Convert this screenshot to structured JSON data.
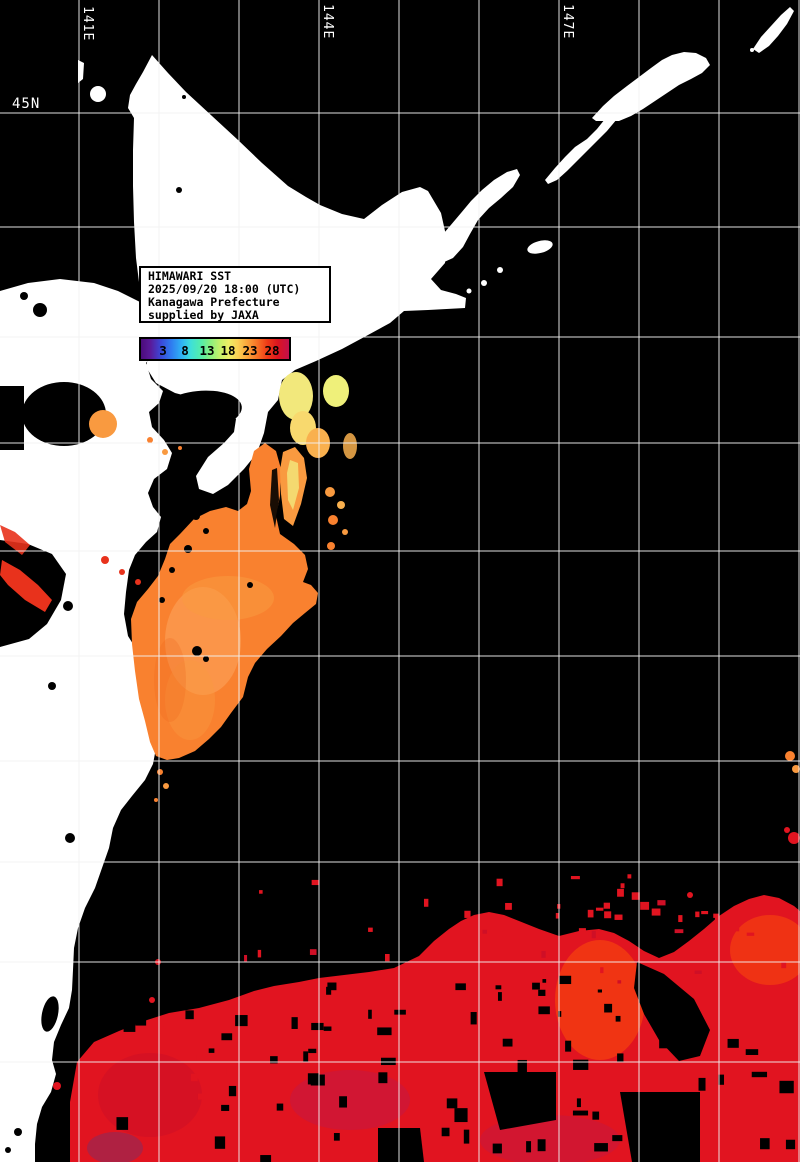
{
  "legend": {
    "lines": [
      "HIMAWARI SST",
      "2025/09/20 18:00 (UTC)",
      "Kanagawa Prefecture",
      "supplied by JAXA"
    ]
  },
  "colorbar": {
    "ticks": [
      "3",
      "8",
      "13",
      "18",
      "23",
      "28"
    ],
    "gradient": [
      {
        "o": 0.0,
        "c": "#4a0a78"
      },
      {
        "o": 0.07,
        "c": "#5a1a9a"
      },
      {
        "o": 0.14,
        "c": "#3a48d8"
      },
      {
        "o": 0.21,
        "c": "#2f7df0"
      },
      {
        "o": 0.28,
        "c": "#2fb4f4"
      },
      {
        "o": 0.34,
        "c": "#3fe0d8"
      },
      {
        "o": 0.41,
        "c": "#55eea8"
      },
      {
        "o": 0.47,
        "c": "#8af07e"
      },
      {
        "o": 0.53,
        "c": "#c2f06a"
      },
      {
        "o": 0.59,
        "c": "#ecee66"
      },
      {
        "o": 0.65,
        "c": "#fbd255"
      },
      {
        "o": 0.71,
        "c": "#fba83c"
      },
      {
        "o": 0.78,
        "c": "#f87426"
      },
      {
        "o": 0.85,
        "c": "#ee3a16"
      },
      {
        "o": 0.92,
        "c": "#dc1420"
      },
      {
        "o": 1.0,
        "c": "#c01050"
      }
    ]
  },
  "geo_labels": {
    "longitude": [
      "141E",
      "144E",
      "147E"
    ],
    "latitude": [
      "45N"
    ]
  },
  "colors": {
    "sea": "#000000",
    "land": "#ffffff",
    "grid": "#f2f2f2",
    "text_dark": "#000000",
    "text_light": "#ffffff",
    "orange": "#f9812f",
    "orange_mid": "#f99a40",
    "orange_light": "#fca45c",
    "orange_deep": "#f06a20",
    "amber": "#f9b04e",
    "yellow": "#f2e87c",
    "yellow_bright": "#eff07a",
    "yellow_pale": "#f8d96e",
    "red": "#e11420",
    "red_bright": "#f23a12",
    "red_streak": "#e8321c",
    "crimson": "#cf0f26",
    "magenta": "#b81a50",
    "magenta_deep": "#8e2a5a"
  }
}
